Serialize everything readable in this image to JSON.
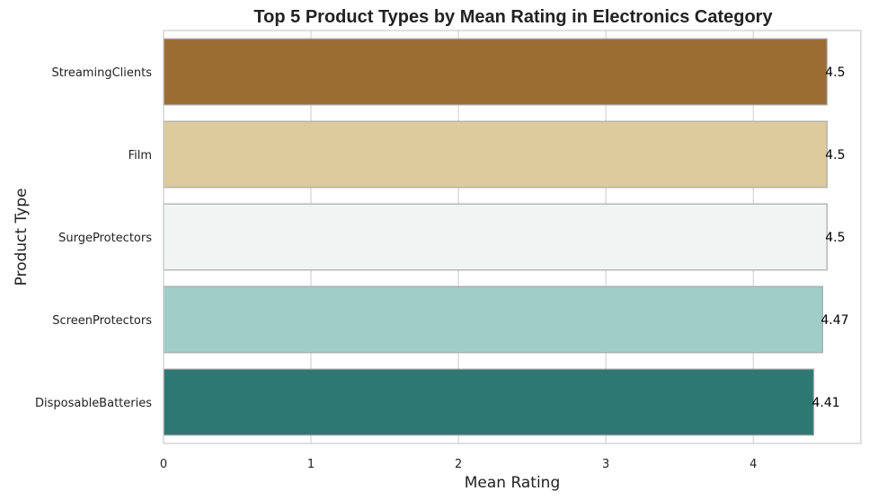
{
  "chart_data": {
    "type": "bar",
    "orientation": "horizontal",
    "title": "Top 5 Product Types by Mean Rating in Electronics Category",
    "xlabel": "Mean Rating",
    "ylabel": "Product Type",
    "xlim": [
      0,
      4.73
    ],
    "x_ticks": [
      0,
      1,
      2,
      3,
      4
    ],
    "grid": true,
    "categories": [
      "StreamingClients",
      "Film",
      "SurgeProtectors",
      "ScreenProtectors",
      "DisposableBatteries"
    ],
    "values": [
      4.5,
      4.5,
      4.5,
      4.47,
      4.41
    ],
    "value_labels": [
      "4.5",
      "4.5",
      "4.5",
      "4.47",
      "4.41"
    ],
    "colors": [
      "#9a6e32",
      "#dccb9c",
      "#f2f4f3",
      "#a0cdc7",
      "#2e7873"
    ]
  }
}
